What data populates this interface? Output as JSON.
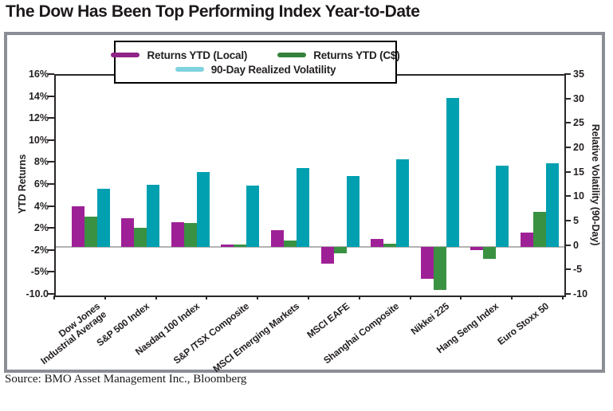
{
  "title": "The Dow Has Been Top Performing Index Year-to-Date",
  "source": "Source: BMO Asset Management Inc., Bloomberg",
  "legend": {
    "items": [
      {
        "label": "Returns YTD (Local)",
        "swatch": "#8f2386"
      },
      {
        "label": "Returns YTD (C$)",
        "swatch": "#35813b"
      },
      {
        "label": "90-Day Realized Volatility",
        "swatch": "#7fd3de"
      }
    ]
  },
  "chart_data": {
    "type": "bar",
    "title": "The Dow Has Been Top Performing Index Year-to-Date",
    "categories": [
      "Dow Jones\nIndustrial Average",
      "S&P 500 Index",
      "Nasdaq 100 Index",
      "S&P /TSX Composite",
      "MSCI Emerging Markets",
      "MSCI EAFE",
      "Shanghai Composite",
      "Nikkei 225",
      "Hang Seng Index",
      "Euro Stoxx 50"
    ],
    "series": [
      {
        "name": "Returns YTD (Local)",
        "axis": "left",
        "unit": "%",
        "color": "#9e2096",
        "values": [
          4.1,
          2.9,
          2.5,
          0.2,
          1.7,
          -1.7,
          0.8,
          -3.2,
          -0.3,
          1.4
        ]
      },
      {
        "name": "Returns YTD (C$)",
        "axis": "left",
        "unit": "%",
        "color": "#3a9142",
        "values": [
          3.0,
          1.9,
          2.4,
          0.2,
          0.6,
          -0.6,
          0.3,
          -4.3,
          -1.2,
          3.5
        ]
      },
      {
        "name": "90-Day Realized Volatility",
        "axis": "right",
        "unit": "",
        "color": "#00a0b0",
        "values": [
          11.9,
          12.7,
          15.3,
          12.6,
          16.2,
          14.5,
          18.0,
          30.5,
          16.7,
          17.2
        ]
      }
    ],
    "left_axis": {
      "label": "YTD Returns",
      "tick_labels": [
        "16%",
        "14%",
        "12%",
        "10%",
        "8%",
        "6%",
        "4%",
        "2%",
        "-2%",
        "-5%",
        "-10.0"
      ]
    },
    "right_axis": {
      "label": "Relative Volatility (90-Day)",
      "tick_labels": [
        "35",
        "30",
        "25",
        "20",
        "15",
        "10",
        "5",
        "0",
        "-5",
        "-10"
      ],
      "range": [
        -10,
        35
      ]
    },
    "zero_line": true,
    "legend_position": "top-center"
  }
}
